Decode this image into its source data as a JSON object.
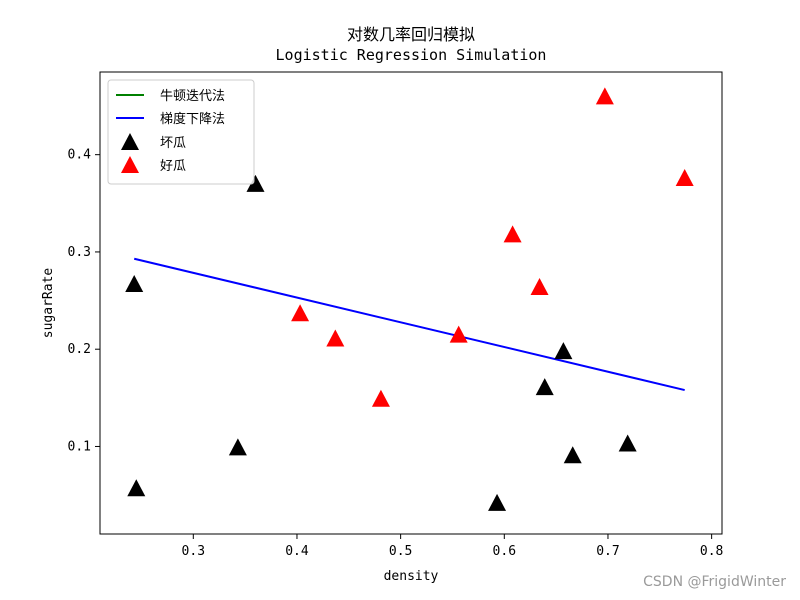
{
  "watermark": "CSDN @FrigidWinter",
  "chart_data": {
    "type": "scatter",
    "title": "对数几率回归模拟",
    "subtitle": "Logistic Regression Simulation",
    "xlabel": "density",
    "ylabel": "sugarRate",
    "xlim": [
      0.21,
      0.81
    ],
    "ylim": [
      0.01,
      0.485
    ],
    "xticks": [
      0.3,
      0.4,
      0.5,
      0.6,
      0.7,
      0.8
    ],
    "yticks": [
      0.1,
      0.2,
      0.3,
      0.4
    ],
    "grid": false,
    "legend_position": "upper-left",
    "lines": [
      {
        "name": "牛顿迭代法",
        "color": "#008000",
        "x": [],
        "y": []
      },
      {
        "name": "梯度下降法",
        "color": "#0000ff",
        "x": [
          0.243,
          0.774
        ],
        "y": [
          0.293,
          0.158
        ]
      }
    ],
    "points": [
      {
        "name": "坏瓜",
        "color": "#000000",
        "marker": "triangle",
        "x": [
          0.36,
          0.243,
          0.245,
          0.343,
          0.593,
          0.657,
          0.639,
          0.666,
          0.719
        ],
        "y": [
          0.37,
          0.267,
          0.057,
          0.099,
          0.042,
          0.198,
          0.161,
          0.091,
          0.103
        ]
      },
      {
        "name": "好瓜",
        "color": "#ff0000",
        "marker": "triangle",
        "x": [
          0.697,
          0.774,
          0.608,
          0.634,
          0.403,
          0.437,
          0.556,
          0.481
        ],
        "y": [
          0.46,
          0.376,
          0.318,
          0.264,
          0.237,
          0.211,
          0.215,
          0.149
        ]
      }
    ]
  }
}
